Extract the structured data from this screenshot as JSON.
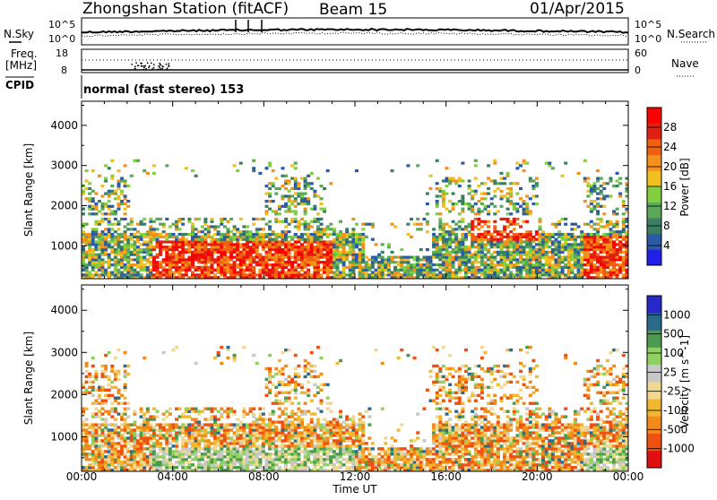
{
  "header": {
    "title": "Zhongshan Station (fitACF)",
    "beam": "Beam 15",
    "date": "01/Apr/2015"
  },
  "top_panels": {
    "nsky_label": "N.Sky",
    "nsky_ticks": [
      "10^5",
      "10^0"
    ],
    "nsearch_label": "N.Search",
    "nsearch_ticks": [
      "10^5",
      "10^0"
    ],
    "freq_label": "Freq.",
    "freq_unit": "[MHz]",
    "freq_ticks": [
      "18",
      "8"
    ],
    "nave_label": "Nave",
    "nave_ticks": [
      "60",
      "0"
    ],
    "cpid_label": "CPID",
    "cpid_value": "normal (fast stereo) 153"
  },
  "colors": {
    "power": [
      "#2020e8",
      "#2a5aa8",
      "#3a8060",
      "#5aa858",
      "#80d040",
      "#f0c020",
      "#f59018",
      "#f06010",
      "#e02010",
      "#ff0000"
    ],
    "velocity": [
      "#e01010",
      "#f05010",
      "#f08a18",
      "#f0b830",
      "#f0d890",
      "#c8c8c8",
      "#90d060",
      "#4a9a50",
      "#2a6a8a",
      "#2828c8"
    ]
  },
  "chart_data": [
    {
      "type": "heatmap",
      "title": "Power",
      "ylabel": "Slant Range [km]",
      "xlabel": "",
      "x_ticks": [
        "00:00",
        "04:00",
        "08:00",
        "12:00",
        "16:00",
        "20:00",
        "00:00"
      ],
      "xlim_hours": [
        0,
        24
      ],
      "ylim": [
        180,
        4600
      ],
      "y_ticks": [
        1000,
        2000,
        3000,
        4000
      ],
      "colorbar": {
        "label": "Power [dB]",
        "ticks": [
          4,
          8,
          12,
          16,
          20,
          24,
          28
        ]
      }
    },
    {
      "type": "heatmap",
      "title": "Velocity",
      "ylabel": "Slant Range [km]",
      "xlabel": "Time UT",
      "x_ticks": [
        "00:00",
        "04:00",
        "08:00",
        "12:00",
        "16:00",
        "20:00",
        "00:00"
      ],
      "xlim_hours": [
        0,
        24
      ],
      "ylim": [
        180,
        4600
      ],
      "y_ticks": [
        1000,
        2000,
        3000,
        4000
      ],
      "colorbar": {
        "label": "Velocity [m s^-1]",
        "ticks": [
          1000,
          500,
          100,
          25,
          -25,
          -100,
          -500,
          -1000
        ]
      }
    }
  ]
}
